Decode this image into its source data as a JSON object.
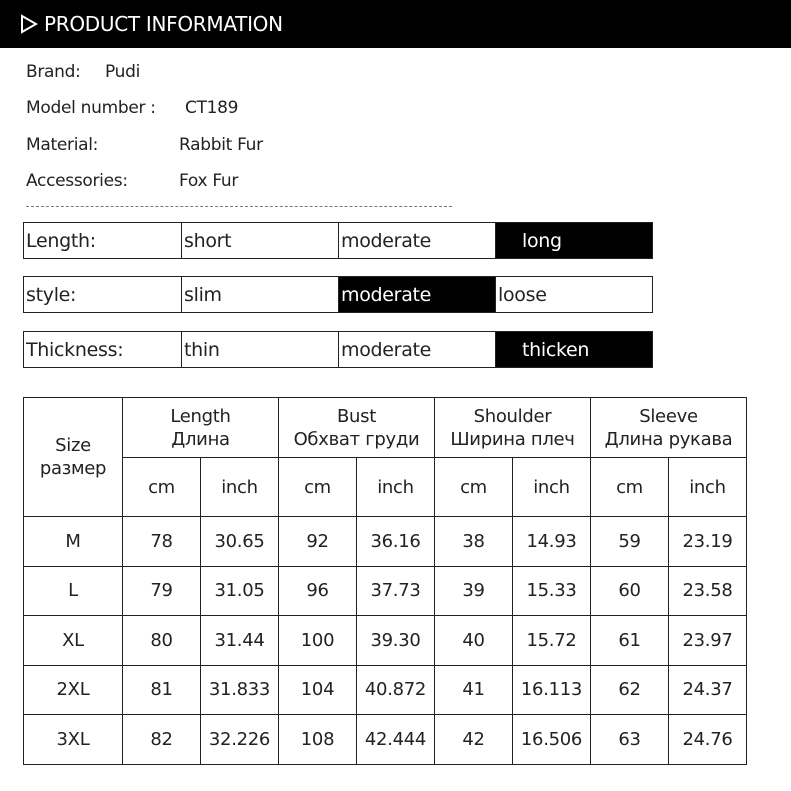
{
  "header": {
    "title": "PRODUCT INFORMATION",
    "icon": "play-triangle-outline-icon"
  },
  "info": [
    {
      "label": "Brand:",
      "value": "Pudi"
    },
    {
      "label": "Model number :",
      "value": "CT189"
    },
    {
      "label": "Material:",
      "value": "Rabbit Fur"
    },
    {
      "label": "Accessories:",
      "value": "Fox Fur"
    }
  ],
  "attributes": [
    {
      "label": "Length:",
      "options": [
        "short",
        "moderate",
        "long"
      ],
      "selected": "long"
    },
    {
      "label": "style:",
      "options": [
        "slim",
        "moderate",
        "loose"
      ],
      "selected": "moderate"
    },
    {
      "label": "Thickness:",
      "options": [
        "thin",
        "moderate",
        "thicken"
      ],
      "selected": "thicken"
    }
  ],
  "size_table": {
    "size_header": [
      "Size",
      "размер"
    ],
    "groups": [
      {
        "en": "Length",
        "ru": "Длина"
      },
      {
        "en": "Bust",
        "ru": "Обхват груди"
      },
      {
        "en": "Shoulder",
        "ru": "Ширина плеч"
      },
      {
        "en": "Sleeve",
        "ru": "Длина рукава"
      }
    ],
    "units": [
      "cm",
      "inch"
    ],
    "rows": [
      [
        "M",
        "78",
        "30.65",
        "92",
        "36.16",
        "38",
        "14.93",
        "59",
        "23.19"
      ],
      [
        "L",
        "79",
        "31.05",
        "96",
        "37.73",
        "39",
        "15.33",
        "60",
        "23.58"
      ],
      [
        "XL",
        "80",
        "31.44",
        "100",
        "39.30",
        "40",
        "15.72",
        "61",
        "23.97"
      ],
      [
        "2XL",
        "81",
        "31.833",
        "104",
        "40.872",
        "41",
        "16.113",
        "62",
        "24.37"
      ],
      [
        "3XL",
        "82",
        "32.226",
        "108",
        "42.444",
        "42",
        "16.506",
        "63",
        "24.76"
      ]
    ]
  }
}
